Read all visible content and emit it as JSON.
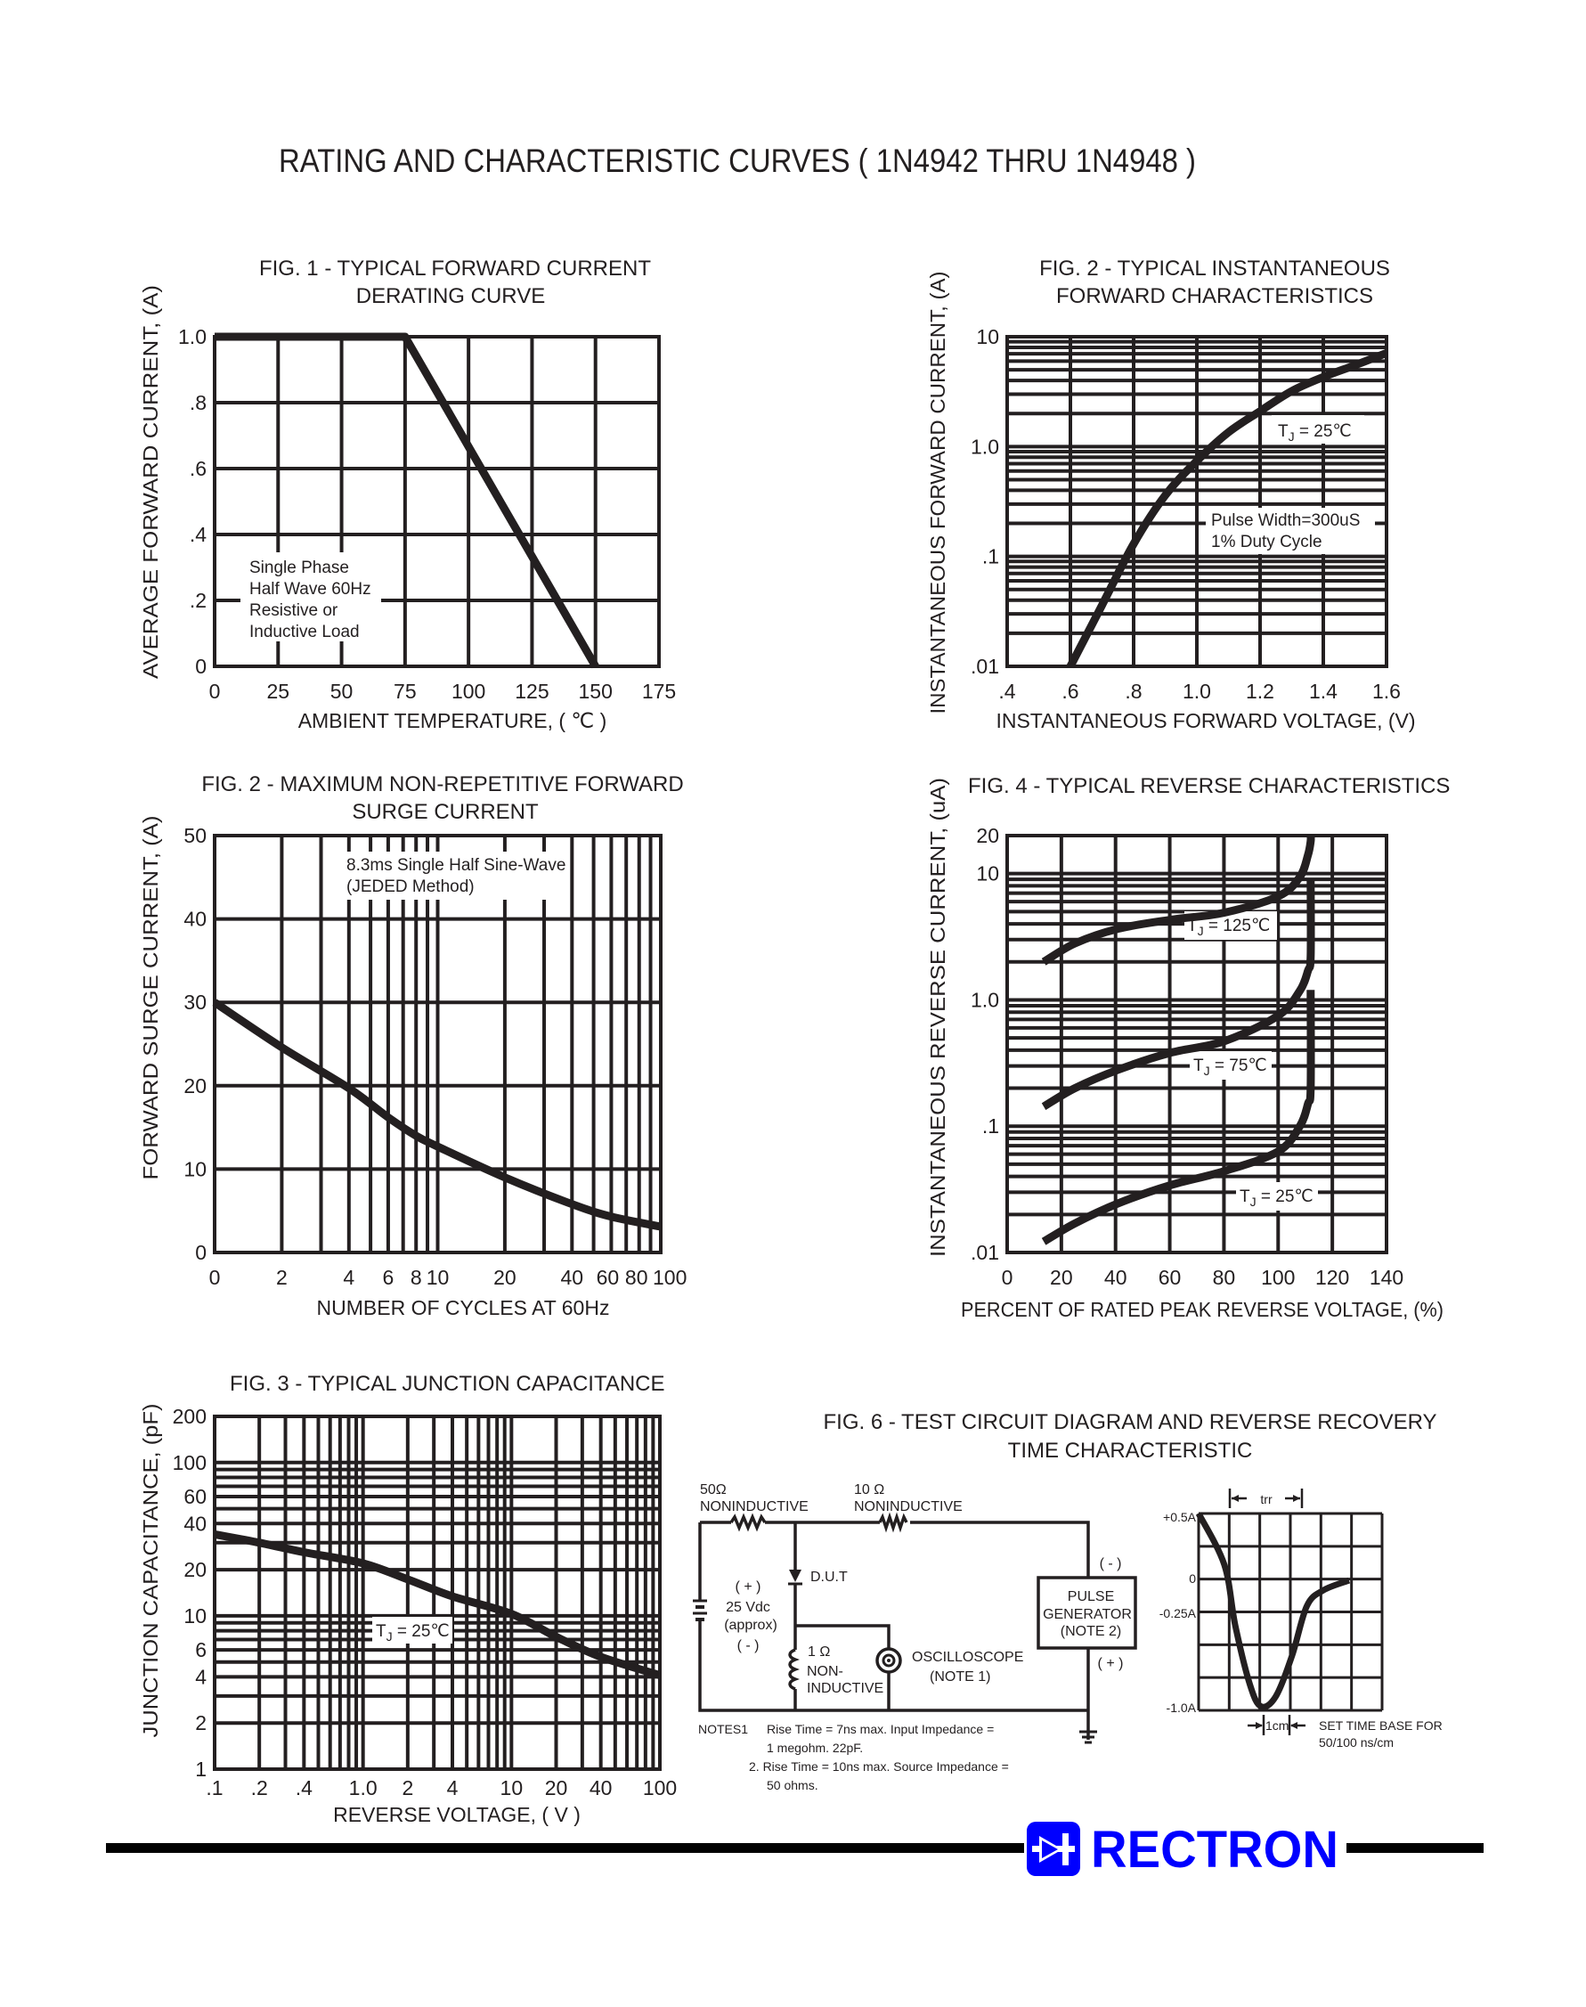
{
  "page_title": "RATING AND CHARACTERISTIC CURVES ( 1N4942 THRU 1N4948 )",
  "brand": {
    "name": "RECTRON",
    "color": "#0000ff"
  },
  "chart_data": [
    {
      "id": "fig1",
      "type": "line",
      "title_lines": [
        "FIG. 1 - TYPICAL FORWARD CURRENT",
        "DERATING CURVE"
      ],
      "xlabel": "AMBIENT TEMPERATURE, ( ℃ )",
      "ylabel": "AVERAGE FORWARD CURRENT, (A)",
      "x_scale": "linear",
      "y_scale": "linear",
      "xlim": [
        0,
        175
      ],
      "ylim": [
        0,
        1.0
      ],
      "x_ticks": [
        {
          "v": 0,
          "l": "0"
        },
        {
          "v": 25,
          "l": "25"
        },
        {
          "v": 50,
          "l": "50"
        },
        {
          "v": 75,
          "l": "75"
        },
        {
          "v": 100,
          "l": "100"
        },
        {
          "v": 125,
          "l": "125"
        },
        {
          "v": 150,
          "l": "150"
        },
        {
          "v": 175,
          "l": "175"
        }
      ],
      "y_ticks": [
        {
          "v": 0,
          "l": "0"
        },
        {
          "v": 0.2,
          "l": ".2"
        },
        {
          "v": 0.4,
          "l": ".4"
        },
        {
          "v": 0.6,
          "l": ".6"
        },
        {
          "v": 0.8,
          "l": ".8"
        },
        {
          "v": 1.0,
          "l": "1.0"
        }
      ],
      "grid": true,
      "annotations": [
        "Single Phase",
        "Half Wave 60Hz",
        "Resistive or",
        "Inductive Load"
      ],
      "series": [
        {
          "x": [
            0,
            75,
            150
          ],
          "y": [
            1.0,
            1.0,
            0
          ]
        }
      ]
    },
    {
      "id": "fig2f",
      "type": "line",
      "title_lines": [
        "FIG. 2 - TYPICAL INSTANTANEOUS",
        "FORWARD CHARACTERISTICS"
      ],
      "xlabel": "INSTANTANEOUS FORWARD VOLTAGE, (V)",
      "ylabel": "INSTANTANEOUS FORWARD CURRENT, (A)",
      "x_scale": "linear",
      "y_scale": "log",
      "xlim": [
        0.4,
        1.6
      ],
      "ylim": [
        0.01,
        10
      ],
      "x_ticks": [
        {
          "v": 0.4,
          "l": ".4"
        },
        {
          "v": 0.6,
          "l": ".6"
        },
        {
          "v": 0.8,
          "l": ".8"
        },
        {
          "v": 1.0,
          "l": "1.0"
        },
        {
          "v": 1.2,
          "l": "1.2"
        },
        {
          "v": 1.4,
          "l": "1.4"
        },
        {
          "v": 1.6,
          "l": "1.6"
        }
      ],
      "y_ticks": [
        {
          "v": 0.01,
          "l": ".01"
        },
        {
          "v": 0.1,
          "l": ".1"
        },
        {
          "v": 1.0,
          "l": "1.0"
        },
        {
          "v": 10,
          "l": "10"
        }
      ],
      "grid": true,
      "annotations": {
        "tj": {
          "prefix": "T",
          "sub": "J",
          "suffix": " = 25℃"
        },
        "pulse": [
          "Pulse Width=300uS",
          "1% Duty Cycle"
        ]
      },
      "series": [
        {
          "x": [
            0.6,
            0.7,
            0.8,
            0.9,
            1.0,
            1.1,
            1.2,
            1.3,
            1.4,
            1.5,
            1.6
          ],
          "y": [
            0.01,
            0.036,
            0.13,
            0.36,
            0.74,
            1.35,
            2.1,
            3.2,
            4.3,
            5.5,
            7.1
          ]
        }
      ]
    },
    {
      "id": "fig2s",
      "type": "line",
      "title_lines": [
        "FIG. 2 - MAXIMUM NON-REPETITIVE FORWARD",
        "SURGE CURRENT"
      ],
      "xlabel": "NUMBER OF CYCLES AT 60Hz",
      "ylabel": "FORWARD SURGE CURRENT, (A)",
      "x_scale": "log",
      "y_scale": "linear",
      "xlim": [
        1,
        100
      ],
      "ylim": [
        0,
        50
      ],
      "x_ticks": [
        {
          "v": 1,
          "l": "0"
        },
        {
          "v": 2,
          "l": "2"
        },
        {
          "v": 4,
          "l": "4"
        },
        {
          "v": 6,
          "l": "6"
        },
        {
          "v": 8,
          "l": "8"
        },
        {
          "v": 10,
          "l": "10"
        },
        {
          "v": 20,
          "l": "20"
        },
        {
          "v": 40,
          "l": "40"
        },
        {
          "v": 60,
          "l": "60"
        },
        {
          "v": 80,
          "l": "80"
        },
        {
          "v": 100,
          "l": "100"
        }
      ],
      "y_ticks": [
        {
          "v": 0,
          "l": "0"
        },
        {
          "v": 10,
          "l": "10"
        },
        {
          "v": 20,
          "l": "20"
        },
        {
          "v": 30,
          "l": "30"
        },
        {
          "v": 40,
          "l": "40"
        },
        {
          "v": 50,
          "l": "50"
        }
      ],
      "grid": true,
      "annotations": [
        "8.3ms Single Half Sine-Wave",
        "(JEDED Method)"
      ],
      "series": [
        {
          "x": [
            1,
            2,
            4,
            6,
            8,
            10,
            20,
            40,
            60,
            100
          ],
          "y": [
            30,
            24.6,
            19.7,
            16.2,
            14.0,
            12.7,
            9.0,
            5.8,
            4.3,
            3.1
          ]
        }
      ]
    },
    {
      "id": "fig4",
      "type": "line",
      "title_lines": [
        "FIG. 4 - TYPICAL REVERSE CHARACTERISTICS"
      ],
      "xlabel": "PERCENT OF RATED PEAK REVERSE VOLTAGE, (%)",
      "ylabel": "INSTANTANEOUS REVERSE CURRENT, (uA)",
      "x_scale": "linear",
      "y_scale": "log",
      "xlim": [
        0,
        140
      ],
      "ylim": [
        0.01,
        20
      ],
      "x_ticks": [
        {
          "v": 0,
          "l": "0"
        },
        {
          "v": 20,
          "l": "20"
        },
        {
          "v": 40,
          "l": "40"
        },
        {
          "v": 60,
          "l": "60"
        },
        {
          "v": 80,
          "l": "80"
        },
        {
          "v": 100,
          "l": "100"
        },
        {
          "v": 120,
          "l": "120"
        },
        {
          "v": 140,
          "l": "140"
        }
      ],
      "y_ticks": [
        {
          "v": 0.01,
          "l": ".01"
        },
        {
          "v": 0.1,
          "l": ".1"
        },
        {
          "v": 1.0,
          "l": "1.0"
        },
        {
          "v": 10,
          "l": "10"
        },
        {
          "v": 20,
          "l": "20"
        }
      ],
      "grid": true,
      "series": [
        {
          "name_parts": {
            "prefix": "T",
            "sub": "J",
            "suffix": " = 125℃"
          },
          "x": [
            13.5,
            25,
            41,
            60,
            80,
            100,
            108,
            111,
            112,
            112
          ],
          "y": [
            2.0,
            2.8,
            3.66,
            4.3,
            4.9,
            6.6,
            9.4,
            14,
            18,
            20
          ]
        },
        {
          "name_parts": {
            "prefix": "T",
            "sub": "J",
            "suffix": " = 75℃"
          },
          "x": [
            13.5,
            25,
            41,
            60,
            80,
            100,
            108,
            111,
            112,
            112
          ],
          "y": [
            0.143,
            0.2,
            0.28,
            0.38,
            0.47,
            0.75,
            1.18,
            1.7,
            2.2,
            9
          ]
        },
        {
          "name_parts": {
            "prefix": "T",
            "sub": "J",
            "suffix": " = 25℃"
          },
          "x": [
            13.5,
            25,
            41,
            60,
            80,
            100,
            108,
            111,
            112,
            112
          ],
          "y": [
            0.0122,
            0.017,
            0.0245,
            0.034,
            0.044,
            0.063,
            0.1,
            0.15,
            0.2,
            1.2
          ]
        }
      ]
    },
    {
      "id": "fig3",
      "type": "line",
      "title_lines": [
        "FIG. 3 - TYPICAL JUNCTION CAPACITANCE"
      ],
      "xlabel": "REVERSE VOLTAGE, ( V )",
      "ylabel": "JUNCTION CAPACITANCE, (pF)",
      "x_scale": "log",
      "y_scale": "log",
      "xlim": [
        0.1,
        100
      ],
      "ylim": [
        1,
        200
      ],
      "x_ticks": [
        {
          "v": 0.1,
          "l": ".1"
        },
        {
          "v": 0.2,
          "l": ".2"
        },
        {
          "v": 0.4,
          "l": ".4"
        },
        {
          "v": 1.0,
          "l": "1.0"
        },
        {
          "v": 2,
          "l": "2"
        },
        {
          "v": 4,
          "l": "4"
        },
        {
          "v": 10,
          "l": "10"
        },
        {
          "v": 20,
          "l": "20"
        },
        {
          "v": 40,
          "l": "40"
        },
        {
          "v": 100,
          "l": "100"
        }
      ],
      "y_ticks": [
        {
          "v": 1,
          "l": "1"
        },
        {
          "v": 2,
          "l": "2"
        },
        {
          "v": 4,
          "l": "4"
        },
        {
          "v": 6,
          "l": "6"
        },
        {
          "v": 10,
          "l": "10"
        },
        {
          "v": 20,
          "l": "20"
        },
        {
          "v": 40,
          "l": "40"
        },
        {
          "v": 60,
          "l": "60"
        },
        {
          "v": 100,
          "l": "100"
        },
        {
          "v": 200,
          "l": "200"
        }
      ],
      "grid": true,
      "annotations": {
        "tj": {
          "prefix": "T",
          "sub": "J",
          "suffix": " = 25℃"
        }
      },
      "series": [
        {
          "x": [
            0.1,
            0.2,
            0.4,
            1.0,
            2,
            4,
            10,
            20,
            40,
            100
          ],
          "y": [
            34,
            30,
            26,
            22,
            17.3,
            13.4,
            10.3,
            7.3,
            5.4,
            4.1
          ]
        }
      ]
    }
  ],
  "figure6": {
    "title_lines": [
      "FIG. 6 - TEST CIRCUIT DIAGRAM  AND REVERSE RECOVERY",
      "TIME CHARACTERISTIC"
    ],
    "r1_value": "50Ω",
    "r1_type": "NONINDUCTIVE",
    "r2_value": "10 Ω",
    "r2_type": "NONINDUCTIVE",
    "dut": "D.U.T",
    "supply_plus": "( + )",
    "supply_voltage": "25 Vdc",
    "supply_approx": "(approx)",
    "supply_minus": "( - )",
    "r3_value": "1 Ω",
    "r3_type_1": "NON-",
    "r3_type_2": "INDUCTIVE",
    "scope_1": "OSCILLOSCOPE",
    "scope_2": "(NOTE 1)",
    "gen_1": "PULSE",
    "gen_2": "GENERATOR",
    "gen_3": "(NOTE 2)",
    "gen_minus": "( - )",
    "gen_plus": "( + )",
    "notes_head": "NOTES1",
    "note1_a": "Rise Time = 7ns max. Input Impedance =",
    "note1_b": "1 megohm. 22pF.",
    "note2_a": "2. Rise Time = 10ns max. Source Impedance =",
    "note2_b": "50 ohms.",
    "scope_y_labels": [
      "+0.5A",
      "0",
      "-0.25A",
      "-1.0A"
    ],
    "trr": "trr",
    "cm": "1cm",
    "timebase_1": "SET TIME BASE FOR",
    "timebase_2": "50/100 ns/cm"
  }
}
